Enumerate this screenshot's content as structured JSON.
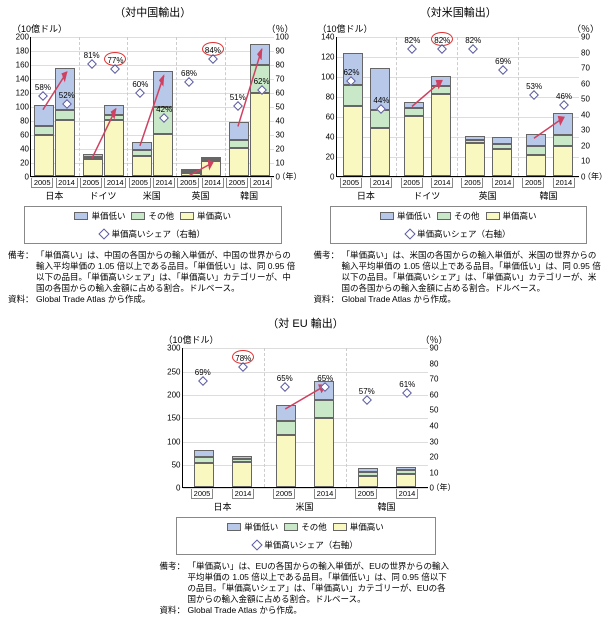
{
  "colors": {
    "low": "#b8c8e8",
    "other": "#c8e8c8",
    "high": "#f8f8c0",
    "diamond_border": "#5a5aa0",
    "circle": "#d33",
    "arrow": "#d04060"
  },
  "legend": {
    "low": "単価低い",
    "other": "その他",
    "high": "単価高い",
    "share": "単価高いシェア（右軸）"
  },
  "notes": {
    "label1": "備考：",
    "label2": "資料：",
    "china_note": "「単価高い」は、中国の各国からの輸入単価が、中国の世界からの輸入平均単価の 1.05 倍以上である品目。「単価低い」は、同 0.95 倍以下の品目。「単価高いシェア」は、「単価高い」カテゴリーが、中国の各国からの輸入金額に占める割合。ドルベース。",
    "us_note": "「単価高い」は、米国の各国からの輸入単価が、米国の世界からの輸入平均単価の 1.05 倍以上である品目。「単価低い」は、同 0.95 倍以下の品目。「単価高いシェア」は、「単価高い」カテゴリーが、米国の各国からの輸入金額に占める割合。ドルベース。",
    "eu_note": "「単価高い」は、EUの各国からの輸入単価が、EUの世界からの輸入平均単価の 1.05 倍以上である品目。「単価低い」は、同 0.95 倍以下の品目。「単価高いシェア」は、「単価高い」カテゴリーが、EUの各国からの輸入金額に占める割合。ドルベース。",
    "source": "Global Trade Atlas から作成。"
  },
  "axis_unit_left": "（10億ドル）",
  "axis_unit_right": "（％）",
  "year_label": "（年）",
  "charts": {
    "china": {
      "title": "（対中国輸出）",
      "ymax": 200,
      "ystep": 20,
      "ymax_r": 100,
      "ystep_r": 10,
      "countries": [
        {
          "name": "日本",
          "bars": [
            {
              "year": "2005",
              "low": 30,
              "other": 13,
              "high": 58,
              "share": 58
            },
            {
              "year": "2014",
              "low": 60,
              "other": 15,
              "high": 80,
              "share": 52
            }
          ],
          "arrow": true
        },
        {
          "name": "ドイツ",
          "bars": [
            {
              "year": "2005",
              "low": 4,
              "other": 2,
              "high": 25,
              "share": 81
            },
            {
              "year": "2014",
              "low": 15,
              "other": 7,
              "high": 80,
              "share": 77,
              "circled": true
            }
          ],
          "arrow": true
        },
        {
          "name": "米国",
          "bars": [
            {
              "year": "2005",
              "low": 12,
              "other": 9,
              "high": 28,
              "share": 60
            },
            {
              "year": "2014",
              "low": 52,
              "other": 38,
              "high": 60,
              "share": 42
            }
          ],
          "arrow": true
        },
        {
          "name": "英国",
          "bars": [
            {
              "year": "2005",
              "low": 1,
              "other": 1,
              "high": 4,
              "share": 68
            },
            {
              "year": "2014",
              "low": 2,
              "other": 2,
              "high": 21,
              "share": 84,
              "circled": true
            }
          ],
          "arrow": true
        },
        {
          "name": "韓国",
          "bars": [
            {
              "year": "2005",
              "low": 25,
              "other": 12,
              "high": 40,
              "share": 51
            },
            {
              "year": "2014",
              "low": 30,
              "other": 40,
              "high": 118,
              "share": 62
            }
          ],
          "arrow": true
        }
      ]
    },
    "us": {
      "title": "（対米国輸出）",
      "ymax": 140,
      "ystep": 20,
      "ymax_r": 90,
      "ystep_r": 10,
      "countries": [
        {
          "name": "日本",
          "bars": [
            {
              "year": "2005",
              "low": 32,
              "other": 21,
              "high": 70,
              "share": 62
            },
            {
              "year": "2014",
              "low": 42,
              "other": 18,
              "high": 48,
              "share": 44
            }
          ],
          "arrow": false
        },
        {
          "name": "ドイツ",
          "bars": [
            {
              "year": "2005",
              "low": 6,
              "other": 8,
              "high": 60,
              "share": 82
            },
            {
              "year": "2014",
              "low": 10,
              "other": 8,
              "high": 82,
              "share": 82,
              "circled": true
            }
          ],
          "arrow": true
        },
        {
          "name": "英国",
          "bars": [
            {
              "year": "2005",
              "low": 4,
              "other": 3,
              "high": 33,
              "share": 82
            },
            {
              "year": "2014",
              "low": 7,
              "other": 5,
              "high": 27,
              "share": 69
            }
          ],
          "arrow": false
        },
        {
          "name": "韓国",
          "bars": [
            {
              "year": "2005",
              "low": 12,
              "other": 9,
              "high": 21,
              "share": 53
            },
            {
              "year": "2014",
              "low": 22,
              "other": 11,
              "high": 30,
              "share": 46
            }
          ],
          "arrow": true
        }
      ]
    },
    "eu": {
      "title": "（対 EU 輸出）",
      "ymax": 300,
      "ystep": 50,
      "ymax_r": 90,
      "ystep_r": 10,
      "countries": [
        {
          "name": "日本",
          "bars": [
            {
              "year": "2005",
              "low": 15,
              "other": 12,
              "high": 52,
              "share": 69
            },
            {
              "year": "2014",
              "low": 8,
              "other": 5,
              "high": 55,
              "share": 78,
              "circled": true
            }
          ],
          "arrow": false
        },
        {
          "name": "米国",
          "bars": [
            {
              "year": "2005",
              "low": 35,
              "other": 30,
              "high": 112,
              "share": 65
            },
            {
              "year": "2014",
              "low": 40,
              "other": 40,
              "high": 148,
              "share": 65
            }
          ],
          "arrow": true
        },
        {
          "name": "韓国",
          "bars": [
            {
              "year": "2005",
              "low": 10,
              "other": 8,
              "high": 24,
              "share": 57
            },
            {
              "year": "2014",
              "low": 8,
              "other": 8,
              "high": 28,
              "share": 61
            }
          ],
          "arrow": false
        }
      ]
    }
  }
}
